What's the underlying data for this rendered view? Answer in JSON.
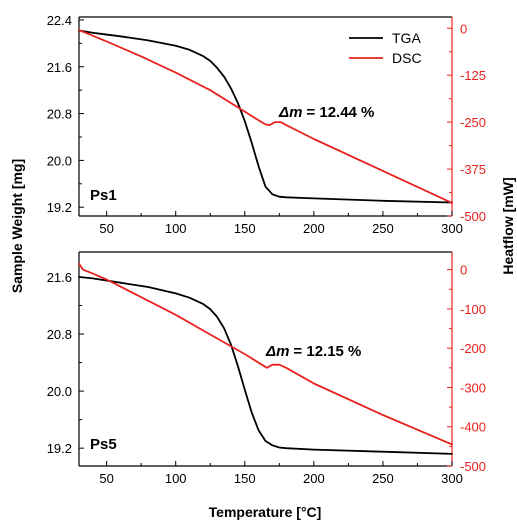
{
  "figure": {
    "ylabel_left": "Sample Weight [mg]",
    "ylabel_right": "Heatflow [mW]",
    "xlabel": "Temperature [°C]"
  },
  "colors": {
    "tga": "#000000",
    "dsc": "#e8231f"
  },
  "legend": {
    "position": "top-right",
    "entries": [
      "TGA",
      "DSC"
    ]
  },
  "chart_data": [
    {
      "type": "line",
      "panel_label": "Ps1",
      "annotation_prefix": "Δm",
      "annotation_value": "= 12.44 %",
      "x_range": [
        30,
        300
      ],
      "x_ticks": [
        50,
        100,
        150,
        200,
        250,
        300
      ],
      "y_left_range": [
        19.05,
        22.45
      ],
      "y_left_ticks": [
        "22.4",
        "21.6",
        "20.8",
        "20.0",
        "19.2"
      ],
      "y_right_range": [
        -500,
        30
      ],
      "y_right_ticks": [
        "0",
        "-125",
        "-250",
        "-375",
        "-500"
      ],
      "series": [
        {
          "name": "TGA",
          "axis": "left",
          "x": [
            30,
            40,
            60,
            80,
            100,
            110,
            120,
            125,
            130,
            135,
            140,
            145,
            150,
            155,
            160,
            165,
            170,
            175,
            180,
            200,
            250,
            300
          ],
          "y": [
            22.22,
            22.18,
            22.12,
            22.05,
            21.96,
            21.89,
            21.78,
            21.7,
            21.58,
            21.43,
            21.23,
            20.98,
            20.67,
            20.3,
            19.9,
            19.55,
            19.42,
            19.38,
            19.37,
            19.35,
            19.31,
            19.28
          ]
        },
        {
          "name": "DSC",
          "axis": "right",
          "x": [
            30,
            50,
            75,
            100,
            125,
            150,
            160,
            165,
            168,
            172,
            176,
            180,
            200,
            250,
            300
          ],
          "y": [
            -5,
            -35,
            -75,
            -118,
            -165,
            -222,
            -245,
            -256,
            -258,
            -250,
            -250,
            -258,
            -295,
            -380,
            -465
          ]
        }
      ]
    },
    {
      "type": "line",
      "panel_label": "Ps5",
      "annotation_prefix": "Δm",
      "annotation_value": "= 12.15 %",
      "x_range": [
        30,
        300
      ],
      "x_ticks": [
        50,
        100,
        150,
        200,
        250,
        300
      ],
      "y_left_range": [
        18.95,
        21.95
      ],
      "y_left_ticks": [
        "21.6",
        "20.8",
        "20.0",
        "19.2"
      ],
      "y_right_range": [
        -500,
        45
      ],
      "y_right_ticks": [
        "0",
        "-100",
        "-200",
        "-300",
        "-400",
        "-500"
      ],
      "series": [
        {
          "name": "TGA",
          "axis": "left",
          "x": [
            30,
            40,
            60,
            80,
            100,
            110,
            120,
            125,
            130,
            135,
            140,
            145,
            150,
            155,
            160,
            165,
            170,
            175,
            180,
            200,
            250,
            300
          ],
          "y": [
            21.6,
            21.58,
            21.52,
            21.46,
            21.37,
            21.31,
            21.22,
            21.15,
            21.04,
            20.88,
            20.65,
            20.35,
            20.02,
            19.7,
            19.45,
            19.3,
            19.24,
            19.21,
            19.2,
            19.18,
            19.15,
            19.12
          ]
        },
        {
          "name": "DSC",
          "axis": "right",
          "x": [
            30,
            33,
            40,
            50,
            75,
            100,
            125,
            150,
            160,
            166,
            170,
            175,
            180,
            200,
            250,
            300
          ],
          "y": [
            15,
            0,
            -10,
            -25,
            -70,
            -115,
            -165,
            -215,
            -237,
            -250,
            -242,
            -242,
            -250,
            -290,
            -370,
            -445
          ]
        }
      ]
    }
  ]
}
